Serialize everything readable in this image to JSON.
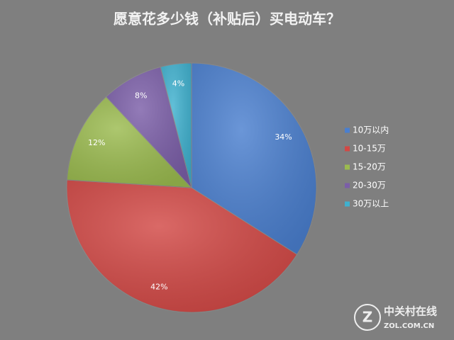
{
  "chart_data": {
    "type": "pie",
    "title": "愿意花多少钱（补贴后）买电动车？",
    "categories": [
      "10万以内",
      "10-15万",
      "15-20万",
      "20-30万",
      "30万以上"
    ],
    "values": [
      34,
      42,
      12,
      8,
      4
    ],
    "value_labels": [
      "34%",
      "42%",
      "12%",
      "8%",
      "4%"
    ],
    "colors": [
      "#4a7fcf",
      "#d24845",
      "#9bbb4f",
      "#7b5ea8",
      "#3fb1cf"
    ],
    "legend": "right"
  },
  "watermark": {
    "name": "中关村在线",
    "url": "ZOL.COM.CN"
  }
}
